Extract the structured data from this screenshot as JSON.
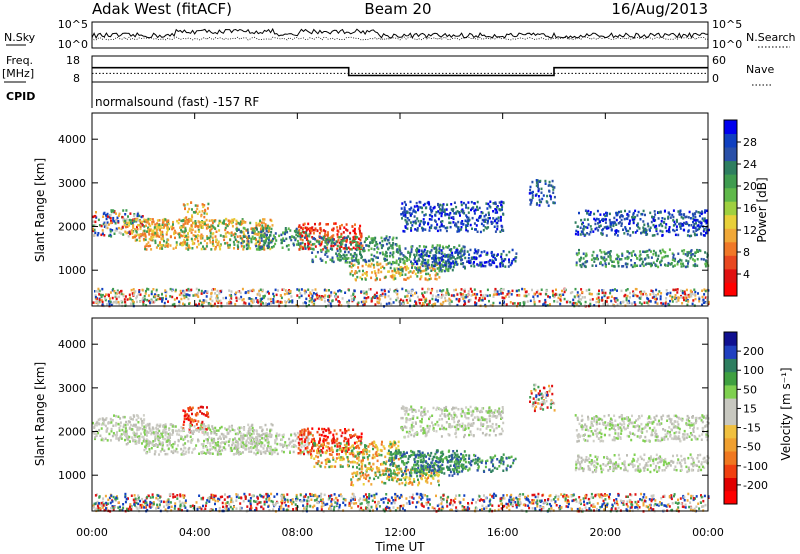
{
  "header": {
    "station": "Adak West (fitACF)",
    "beam": "Beam 20",
    "date": "16/Aug/2013"
  },
  "labels": {
    "nsky": "N.Sky",
    "nsearch": "N.Search",
    "freq_top": "Freq.",
    "freq_unit": "[MHz]",
    "nave": "Nave",
    "cpid": "CPID",
    "cpid_text": "normalsound (fast) -157 RF",
    "ylabel": "Slant Range [km]",
    "xlabel": "Time UT",
    "power_label": "Power [dB]",
    "velocity_label": "Velocity [m s⁻¹]"
  },
  "axes": {
    "noise_left_ticks": [
      "10^5",
      "10^0"
    ],
    "noise_right_ticks": [
      "10^5",
      "10^0"
    ],
    "freq_ticks": [
      "18",
      "8"
    ],
    "nave_ticks": [
      "60",
      "0"
    ],
    "range_ticks": [
      "4000",
      "3000",
      "2000",
      "1000"
    ],
    "time_ticks": [
      "00:00",
      "04:00",
      "08:00",
      "12:00",
      "16:00",
      "20:00",
      "00:00"
    ]
  },
  "colorbars": {
    "power": {
      "ticks": [
        "28",
        "24",
        "20",
        "16",
        "12",
        "8",
        "4"
      ],
      "colors": [
        "#0000ee",
        "#1040c0",
        "#2a50a8",
        "#2e7e60",
        "#3f9c50",
        "#5fb84a",
        "#9fd040",
        "#e8d03a",
        "#f0a838",
        "#f07828",
        "#e84820",
        "#e01010",
        "#ff0000"
      ]
    },
    "velocity": {
      "ticks": [
        "200",
        "100",
        "50",
        "15",
        "-15",
        "-50",
        "-100",
        "-200"
      ],
      "colors": [
        "#101090",
        "#2040c0",
        "#2e7e60",
        "#3fa040",
        "#7fd050",
        "#c8c8c0",
        "#c8c8c0",
        "#f0c040",
        "#f0a030",
        "#f07820",
        "#f04010",
        "#e00000",
        "#ff0000"
      ]
    }
  },
  "chart_data": {
    "type": "heatmap",
    "x_range_hours": [
      0,
      24
    ],
    "y_range_km": [
      180,
      4600
    ],
    "frequency_mhz": [
      {
        "t": 0,
        "f": 13.5
      },
      {
        "t": 10,
        "f": 13.5
      },
      {
        "t": 10,
        "f": 10.5
      },
      {
        "t": 18,
        "f": 10.5
      },
      {
        "t": 18,
        "f": 13.5
      },
      {
        "t": 24,
        "f": 13.5
      }
    ],
    "nave": 20,
    "echo_regions": [
      {
        "t0": 0.0,
        "t1": 2.0,
        "r0": 1800,
        "r1": 2400,
        "power": "mixed",
        "velocity": "gray"
      },
      {
        "t0": 1.2,
        "t1": 3.0,
        "r0": 1700,
        "r1": 2200,
        "power": "orange",
        "velocity": "gray"
      },
      {
        "t0": 3.5,
        "t1": 4.5,
        "r0": 2000,
        "r1": 2600,
        "power": "orange",
        "velocity": "red"
      },
      {
        "t0": 2.0,
        "t1": 7.0,
        "r0": 1500,
        "r1": 2200,
        "power": "orange",
        "velocity": "gray"
      },
      {
        "t0": 5.5,
        "t1": 8.5,
        "r0": 1500,
        "r1": 2000,
        "power": "green",
        "velocity": "gray"
      },
      {
        "t0": 8.0,
        "t1": 10.5,
        "r0": 1500,
        "r1": 2100,
        "power": "red",
        "velocity": "red"
      },
      {
        "t0": 8.5,
        "t1": 12.0,
        "r0": 1200,
        "r1": 1800,
        "power": "green",
        "velocity": "orange"
      },
      {
        "t0": 10.0,
        "t1": 13.5,
        "r0": 800,
        "r1": 1200,
        "power": "orange",
        "velocity": "orange"
      },
      {
        "t0": 11.5,
        "t1": 14.5,
        "r0": 1000,
        "r1": 1600,
        "power": "green",
        "velocity": "green"
      },
      {
        "t0": 12.5,
        "t1": 16.5,
        "r0": 1100,
        "r1": 1500,
        "power": "blue",
        "velocity": "green"
      },
      {
        "t0": 12.0,
        "t1": 16.0,
        "r0": 1900,
        "r1": 2600,
        "power": "blue",
        "velocity": "gray"
      },
      {
        "t0": 17.0,
        "t1": 18.0,
        "r0": 2500,
        "r1": 3100,
        "power": "blue",
        "velocity": "mixed"
      },
      {
        "t0": 18.8,
        "t1": 24.0,
        "r0": 1100,
        "r1": 1500,
        "power": "green",
        "velocity": "gray"
      },
      {
        "t0": 18.8,
        "t1": 24.0,
        "r0": 1800,
        "r1": 2400,
        "power": "blue",
        "velocity": "gray"
      },
      {
        "t0": 0.0,
        "t1": 24.0,
        "r0": 200,
        "r1": 600,
        "power": "mixed",
        "velocity": "mixed"
      }
    ]
  }
}
